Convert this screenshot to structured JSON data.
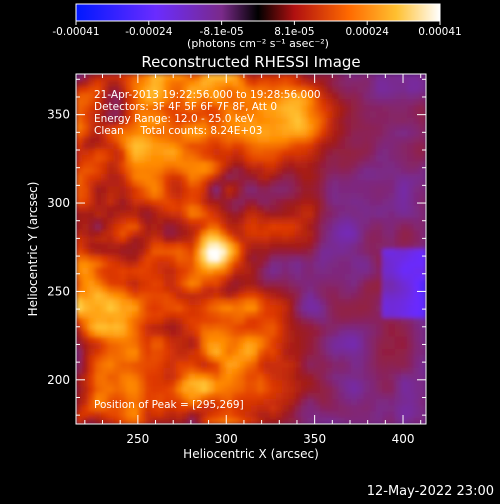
{
  "colorbar": {
    "ticks": [
      "-0.00041",
      "-0.00024",
      "-8.1e-05",
      "8.1e-05",
      "0.00024",
      "0.00041"
    ],
    "unit_label": "(photons cm⁻² s⁻¹ asec⁻²)"
  },
  "chart_data": {
    "type": "heatmap",
    "title": "Reconstructed RHESSI Image",
    "xlabel": "Heliocentric X (arcsec)",
    "ylabel": "Heliocentric Y (arcsec)",
    "xlim": [
      215,
      413
    ],
    "ylim": [
      175,
      373
    ],
    "x_ticks": [
      250,
      300,
      350,
      400
    ],
    "y_ticks": [
      200,
      250,
      300,
      350
    ],
    "value_range": [
      -0.00041,
      0.00041
    ],
    "peak": [
      295,
      269
    ],
    "annotations": [
      "21-Apr-2013 19:22:56.000 to 19:28:56.000",
      "Detectors: 3F 4F 5F 6F 7F 8F, Att 0",
      "Energy Range: 12.0 - 25.0 keV",
      "Clean     Total counts: 8.24E+03",
      "Position of Peak = [295,269]"
    ]
  },
  "footer": {
    "timestamp": "12-May-2022 23:00"
  },
  "colors": {
    "background": "#000000",
    "colormap": [
      "#0018ff",
      "#6a2cff",
      "#7a2a8a",
      "#a01a1a",
      "#e03a00",
      "#ff8a00",
      "#ffd040",
      "#ffffff"
    ]
  }
}
